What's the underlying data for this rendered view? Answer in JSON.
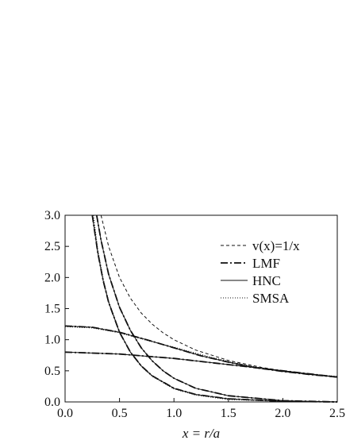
{
  "chart_data": {
    "type": "line",
    "xlabel": "x = r/a",
    "ylabel": "",
    "xlim": [
      0.0,
      2.5
    ],
    "ylim": [
      0.0,
      3.0
    ],
    "x_ticks": [
      "0.0",
      "0.5",
      "1.0",
      "1.5",
      "2.0",
      "2.5"
    ],
    "y_ticks": [
      "0.0",
      "0.5",
      "1.0",
      "1.5",
      "2.0",
      "2.5",
      "3.0"
    ],
    "grid": false,
    "legend_position": "top-right",
    "legend": [
      "v(x)=1/x",
      "LMF",
      "HNC",
      "SMSA"
    ],
    "series": [
      {
        "name": "v(x)=1/x",
        "style": "dashed",
        "curves": [
          {
            "x": [
              0.33,
              0.4,
              0.5,
              0.6,
              0.7,
              0.8,
              0.9,
              1.0,
              1.2,
              1.5,
              1.8,
              2.0,
              2.2,
              2.5
            ],
            "y": [
              3.0,
              2.5,
              2.0,
              1.667,
              1.429,
              1.25,
              1.111,
              1.0,
              0.833,
              0.667,
              0.556,
              0.5,
              0.455,
              0.4
            ]
          }
        ]
      },
      {
        "name": "LMF",
        "style": "dash-dot",
        "curves": [
          {
            "x": [
              0.0,
              0.5,
              1.0,
              1.5,
              2.0,
              2.5
            ],
            "y": [
              0.8,
              0.77,
              0.7,
              0.6,
              0.5,
              0.4
            ]
          },
          {
            "x": [
              0.0,
              0.25,
              0.5,
              0.75,
              1.0,
              1.25,
              1.5,
              1.75,
              2.0,
              2.25,
              2.5
            ],
            "y": [
              1.22,
              1.2,
              1.12,
              1.0,
              0.87,
              0.74,
              0.64,
              0.55,
              0.49,
              0.44,
              0.4
            ]
          },
          {
            "x": [
              0.25,
              0.3,
              0.35,
              0.4,
              0.5,
              0.6,
              0.7,
              0.8,
              1.0,
              1.2,
              1.5,
              2.0,
              2.5
            ],
            "y": [
              3.0,
              2.4,
              1.95,
              1.6,
              1.12,
              0.8,
              0.58,
              0.42,
              0.22,
              0.12,
              0.05,
              0.01,
              0.0
            ]
          },
          {
            "x": [
              0.29,
              0.33,
              0.4,
              0.5,
              0.6,
              0.7,
              0.8,
              0.9,
              1.0,
              1.2,
              1.5,
              2.0,
              2.5
            ],
            "y": [
              3.0,
              2.6,
              2.05,
              1.52,
              1.15,
              0.87,
              0.66,
              0.5,
              0.38,
              0.22,
              0.1,
              0.02,
              0.0
            ]
          }
        ]
      },
      {
        "name": "HNC",
        "style": "solid",
        "curves": [
          {
            "x": [
              0.0,
              0.5,
              1.0,
              1.5,
              2.0,
              2.5
            ],
            "y": [
              0.8,
              0.77,
              0.7,
              0.6,
              0.5,
              0.4
            ]
          },
          {
            "x": [
              0.0,
              0.25,
              0.5,
              0.75,
              1.0,
              1.25,
              1.5,
              1.75,
              2.0,
              2.25,
              2.5
            ],
            "y": [
              1.22,
              1.2,
              1.12,
              1.0,
              0.87,
              0.74,
              0.64,
              0.55,
              0.49,
              0.44,
              0.4
            ]
          },
          {
            "x": [
              0.25,
              0.3,
              0.35,
              0.4,
              0.5,
              0.6,
              0.7,
              0.8,
              1.0,
              1.2,
              1.5,
              2.0,
              2.5
            ],
            "y": [
              3.0,
              2.4,
              1.95,
              1.6,
              1.12,
              0.8,
              0.58,
              0.42,
              0.22,
              0.12,
              0.05,
              0.01,
              0.0
            ]
          },
          {
            "x": [
              0.29,
              0.33,
              0.4,
              0.5,
              0.6,
              0.7,
              0.8,
              0.9,
              1.0,
              1.2,
              1.5,
              2.0,
              2.5
            ],
            "y": [
              3.0,
              2.6,
              2.05,
              1.52,
              1.15,
              0.87,
              0.66,
              0.5,
              0.38,
              0.22,
              0.1,
              0.02,
              0.0
            ]
          }
        ]
      },
      {
        "name": "SMSA",
        "style": "dotted",
        "curves": [
          {
            "x": [
              0.0,
              0.25,
              0.5,
              0.75,
              1.0,
              1.25,
              1.5,
              1.75,
              2.0,
              2.25,
              2.5
            ],
            "y": [
              1.21,
              1.19,
              1.11,
              0.99,
              0.88,
              0.76,
              0.65,
              0.56,
              0.5,
              0.45,
              0.41
            ]
          },
          {
            "x": [
              0.26,
              0.3,
              0.35,
              0.4,
              0.5,
              0.6,
              0.7,
              0.8,
              1.0,
              1.2,
              1.5,
              2.0,
              2.5
            ],
            "y": [
              3.0,
              2.45,
              1.98,
              1.62,
              1.13,
              0.8,
              0.57,
              0.41,
              0.21,
              0.11,
              0.04,
              0.01,
              0.0
            ]
          }
        ]
      }
    ]
  }
}
